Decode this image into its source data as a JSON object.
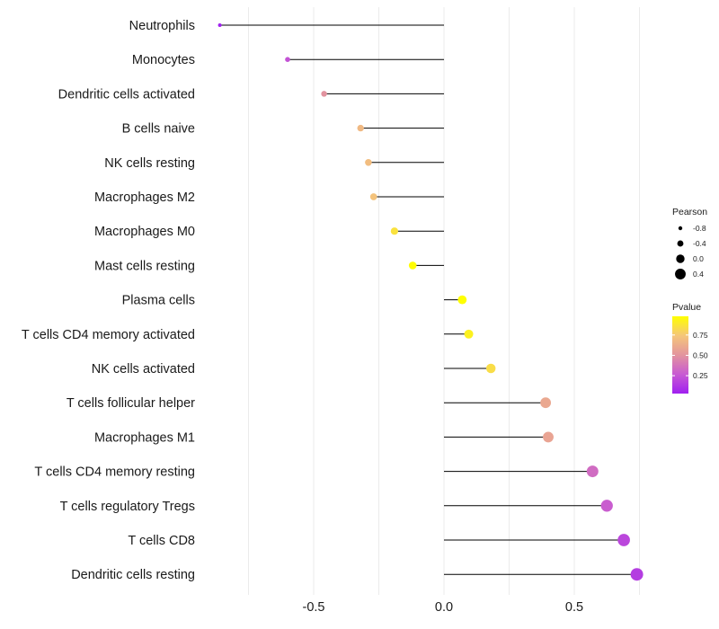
{
  "chart_data": {
    "type": "lollipop",
    "title": "",
    "xlabel": "",
    "ylabel": "",
    "categories": [
      "Neutrophils",
      "Monocytes",
      "Dendritic cells activated",
      "B cells naive",
      "NK cells resting",
      "Macrophages M2",
      "Macrophages M0",
      "Mast cells resting",
      "Plasma cells",
      "T cells CD4 memory activated",
      "NK cells activated",
      "T cells follicular helper",
      "Macrophages M1",
      "T cells CD4 memory resting",
      "T cells regulatory  Tregs ",
      "T cells CD8",
      "Dendritic cells resting"
    ],
    "values": [
      -0.86,
      -0.6,
      -0.46,
      -0.32,
      -0.29,
      -0.27,
      -0.19,
      -0.12,
      0.07,
      0.095,
      0.18,
      0.39,
      0.4,
      0.57,
      0.625,
      0.69,
      0.74
    ],
    "pvalues": [
      0.03,
      0.24,
      0.5,
      0.68,
      0.7,
      0.73,
      0.86,
      0.97,
      0.98,
      0.92,
      0.84,
      0.6,
      0.58,
      0.34,
      0.28,
      0.19,
      0.15
    ],
    "xlim": [
      -0.92,
      0.78
    ],
    "xticks": [
      -0.5,
      0.0,
      0.5
    ],
    "xtick_labels": [
      "-0.5",
      "0.0",
      "0.5"
    ],
    "grid": true,
    "size_legend": {
      "title": "Pearson",
      "values": [
        -0.8,
        -0.4,
        0.0,
        0.4
      ],
      "labels": [
        "-0.8",
        "-0.4",
        "0.0",
        "0.4"
      ]
    },
    "color_legend": {
      "title": "Pvalue",
      "range": [
        0.03,
        0.98
      ],
      "ticks": [
        0.25,
        0.5,
        0.75
      ],
      "tick_labels": [
        "0.25",
        "0.50",
        "0.75"
      ],
      "low_color": "#a020f0",
      "high_color": "#ffff00"
    },
    "legend_position": "right"
  }
}
